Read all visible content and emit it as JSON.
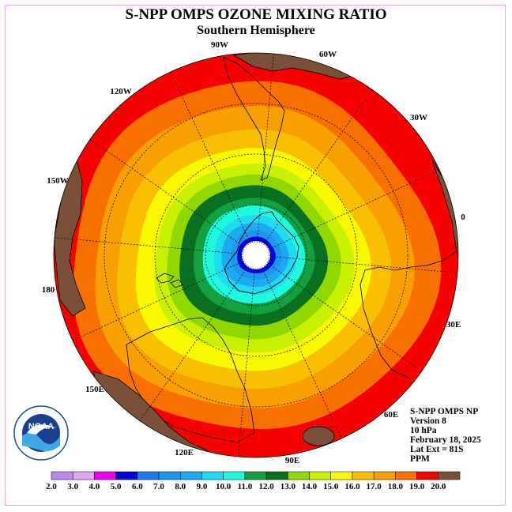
{
  "title": "S-NPP OMPS OZONE MIXING RATIO",
  "subtitle": "Southern Hemisphere",
  "info": {
    "line1": "S-NPP OMPS NP",
    "line2": "Version 8",
    "line3": "10 hPa",
    "line4": "February 18, 2025",
    "line5": "Lat Ext = 81S",
    "line6": "PPM"
  },
  "logo_text": "NOAA",
  "longitude_labels": [
    "0",
    "30E",
    "60E",
    "90E",
    "120E",
    "150E",
    "180",
    "150W",
    "120W",
    "90W",
    "60W",
    "30W"
  ],
  "colorbar": {
    "ticks": [
      "2.0",
      "3.0",
      "4.0",
      "5.0",
      "6.0",
      "7.0",
      "8.0",
      "9.0",
      "10.0",
      "11.0",
      "12.0",
      "13.0",
      "14.0",
      "15.0",
      "16.0",
      "17.0",
      "18.0",
      "19.0",
      "20.0"
    ],
    "colors": [
      "#bb88ee",
      "#dda8f0",
      "#ee00ee",
      "#0000dd",
      "#1e78ee",
      "#1e96ee",
      "#1eaaf0",
      "#1edcf0",
      "#1efae0",
      "#12a040",
      "#087020",
      "#90d800",
      "#c8f000",
      "#f8f800",
      "#f8c000",
      "#f8a000",
      "#f87000",
      "#f80000",
      "#7a5038"
    ]
  },
  "colors": {
    "land": "#7a5038",
    "coast": "#000000",
    "frame": "#e4a6e4"
  }
}
